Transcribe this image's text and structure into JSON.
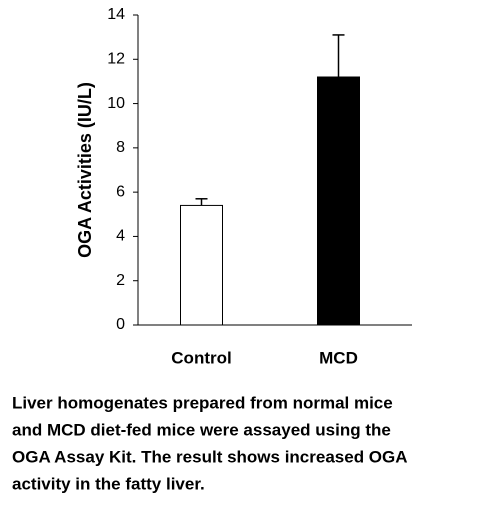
{
  "chart_data": {
    "type": "bar",
    "y_label": "OGA Activities (IU/L)",
    "categories": [
      "Control",
      "MCD"
    ],
    "values": [
      5.4,
      11.2
    ],
    "errors": [
      0.3,
      1.9
    ],
    "colors": [
      "#ffffff",
      "#000000"
    ],
    "edge_color": "#000000",
    "ylim": [
      0,
      14
    ],
    "yticks": [
      0,
      2,
      4,
      6,
      8,
      10,
      12,
      14
    ],
    "grid": false,
    "caption": [
      "Liver homogenates prepared from normal mice",
      "and MCD diet-fed mice were assayed using the",
      "OGA Assay Kit. The result shows increased OGA",
      "activity in the fatty liver."
    ]
  }
}
